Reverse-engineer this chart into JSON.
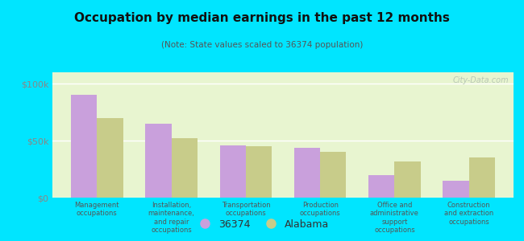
{
  "title": "Occupation by median earnings in the past 12 months",
  "subtitle": "(Note: State values scaled to 36374 population)",
  "categories": [
    "Management\noccupations",
    "Installation,\nmaintenance,\nand repair\noccupations",
    "Transportation\noccupations",
    "Production\noccupations",
    "Office and\nadministrative\nsupport\noccupations",
    "Construction\nand extraction\noccupations"
  ],
  "values_36374": [
    90000,
    65000,
    46000,
    44000,
    20000,
    15000
  ],
  "values_alabama": [
    70000,
    52000,
    45000,
    40000,
    32000,
    35000
  ],
  "color_36374": "#c9a0dc",
  "color_alabama": "#c8cc8a",
  "background_plot": "#e8f5d0",
  "background_fig": "#00e5ff",
  "ylim": [
    0,
    110000
  ],
  "yticks": [
    0,
    50000,
    100000
  ],
  "ytick_labels": [
    "$0",
    "$50k",
    "$100k"
  ],
  "legend_label_1": "36374",
  "legend_label_2": "Alabama",
  "watermark": "City-Data.com"
}
